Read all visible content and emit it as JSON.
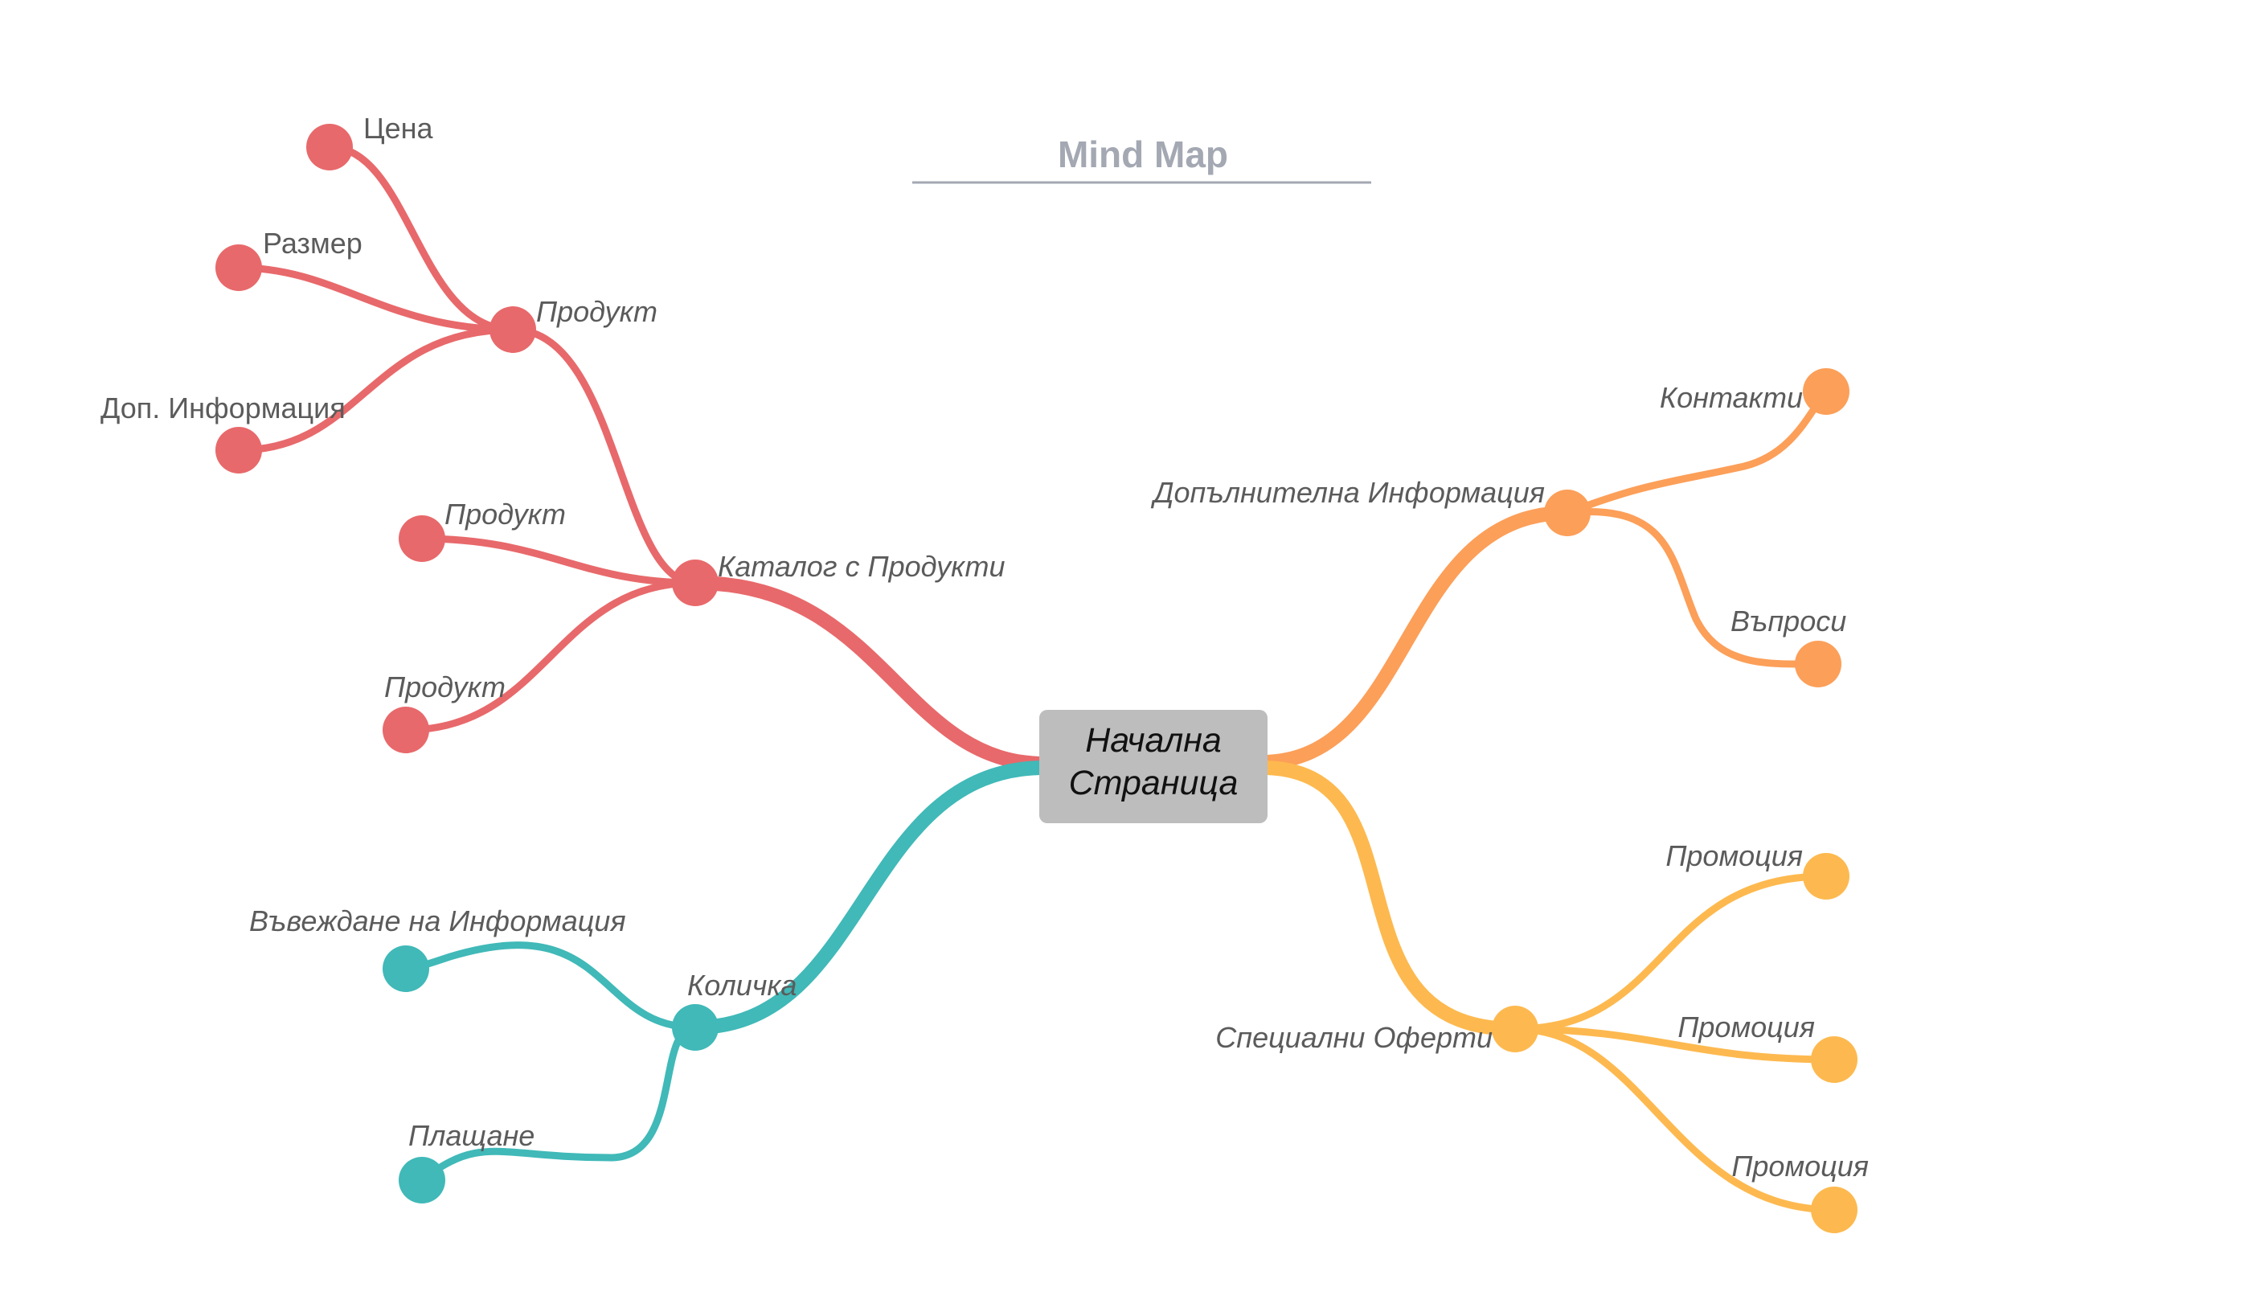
{
  "title": "Mind Map",
  "colors": {
    "red": "#e8696b",
    "teal": "#40b9b8",
    "orange": "#fc9f59",
    "yellow": "#fdb94f",
    "root_fill": "#bdbdbd",
    "title": "#a3a8b2"
  },
  "root": {
    "line1": "Начална",
    "line2": "Страница"
  },
  "branches": {
    "catalog": {
      "label": "Каталог с Продукти",
      "product_main": {
        "label": "Продукт",
        "children": [
          "Цена",
          "Размер",
          "Доп. Информация"
        ]
      },
      "product_2": "Продукт",
      "product_3": "Продукт"
    },
    "cart": {
      "label": "Количка",
      "children": [
        "Въвеждане на Информация",
        "Плащане"
      ]
    },
    "info": {
      "label": "Допълнителна Информация",
      "children": [
        "Контакти",
        "Въпроси"
      ]
    },
    "offers": {
      "label": "Специални Оферти",
      "children": [
        "Промоция",
        "Промоция",
        "Промоция"
      ]
    }
  }
}
